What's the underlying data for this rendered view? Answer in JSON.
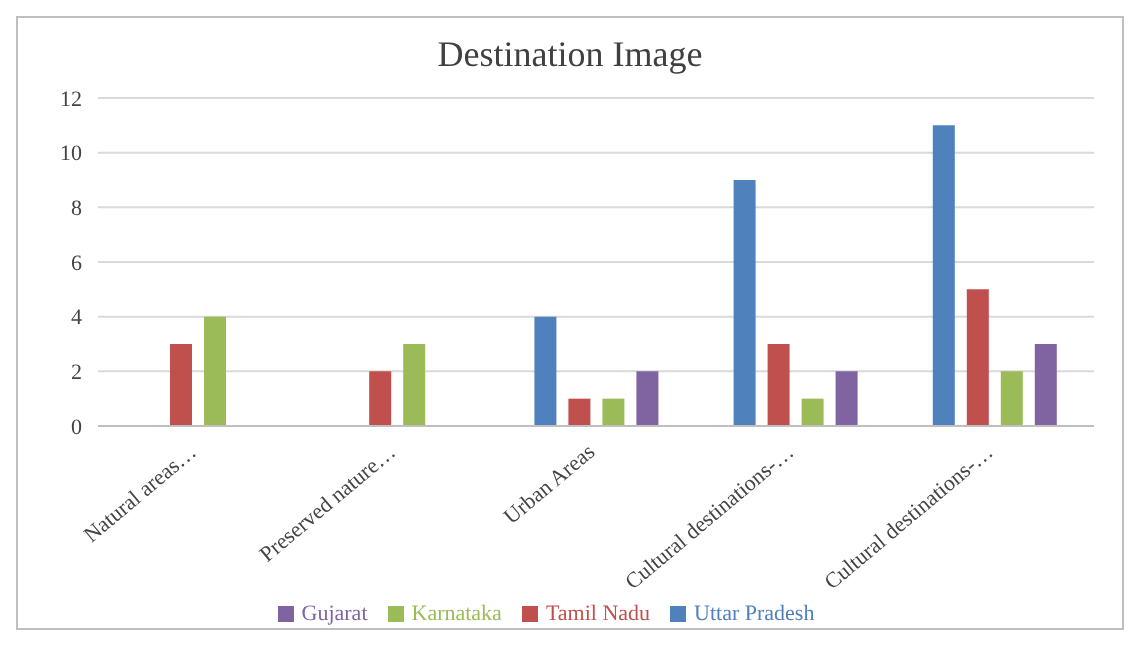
{
  "chart_data": {
    "type": "bar",
    "title": "Destination Image",
    "categories": [
      "Natural areas…",
      "Preserved nature…",
      "Urban Areas",
      "Cultural destinations-…",
      "Cultural destinations-…"
    ],
    "series": [
      {
        "name": "Uttar Pradesh",
        "color": "#4f81bd",
        "values": [
          0,
          0,
          4,
          9,
          11
        ]
      },
      {
        "name": "Tamil Nadu",
        "color": "#c0504d",
        "values": [
          3,
          2,
          1,
          3,
          5
        ]
      },
      {
        "name": "Karnataka",
        "color": "#9bbb59",
        "values": [
          4,
          3,
          1,
          1,
          2
        ]
      },
      {
        "name": "Gujarat",
        "color": "#8064a2",
        "values": [
          0,
          0,
          2,
          2,
          3
        ]
      }
    ],
    "ylim": [
      0,
      12
    ],
    "yticks": [
      0,
      2,
      4,
      6,
      8,
      10,
      12
    ],
    "grid": "y",
    "legend": "bottom"
  }
}
